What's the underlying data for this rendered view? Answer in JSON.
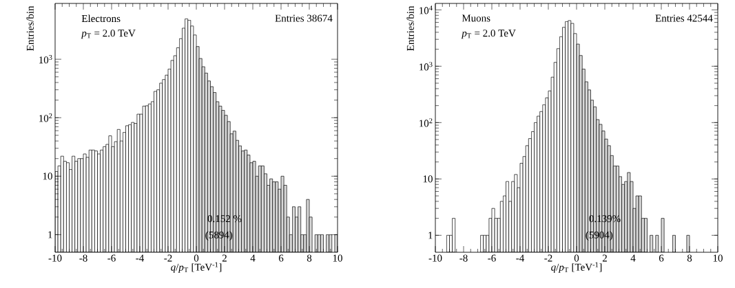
{
  "chart_data": [
    {
      "type": "histogram",
      "xlabel": "*q*/*p*$_{T}$ [TeV$^{-1}$]",
      "ylabel": "Entries/bin",
      "annotations": [
        "Electrons",
        "*p*$_{T}$ = 2.0 TeV",
        "Entries 38674",
        "0.152 %",
        "(5894)"
      ],
      "bins": [
        -10,
        -9.8,
        -9.6,
        -9.4,
        -9.2,
        -9,
        -8.8,
        -8.6,
        -8.4,
        -8.2,
        -8,
        -7.8,
        -7.6,
        -7.4,
        -7.2,
        -7,
        -6.8,
        -6.6,
        -6.4,
        -6.2,
        -6,
        -5.8,
        -5.6,
        -5.4,
        -5.2,
        -5,
        -4.8,
        -4.6,
        -4.4,
        -4.2,
        -4,
        -3.8,
        -3.6,
        -3.4,
        -3.2,
        -3,
        -2.8,
        -2.6,
        -2.4,
        -2.2,
        -2,
        -1.8,
        -1.6,
        -1.4,
        -1.2,
        -1,
        -0.8,
        -0.6,
        -0.4,
        -0.2,
        0,
        0.2,
        0.4,
        0.6,
        0.8,
        1,
        1.2,
        1.4,
        1.6,
        1.8,
        2,
        2.2,
        2.4,
        2.6,
        2.8,
        3,
        3.2,
        3.4,
        3.6,
        3.8,
        4,
        4.2,
        4.4,
        4.6,
        4.8,
        5,
        5.2,
        5.4,
        5.6,
        5.8,
        6,
        6.2,
        6.4,
        6.6,
        6.8,
        7,
        7.2,
        7.4,
        7.6,
        7.8,
        8,
        8.2,
        8.4,
        8.6,
        8.8,
        9,
        9.2,
        9.4,
        9.6,
        9.8,
        10
      ],
      "values": [
        12,
        15,
        22,
        18,
        17,
        13,
        22,
        18,
        20,
        20,
        24,
        21,
        28,
        28,
        27,
        24,
        28,
        32,
        35,
        49,
        32,
        39,
        63,
        40,
        56,
        73,
        76,
        83,
        80,
        115,
        115,
        158,
        160,
        172,
        188,
        282,
        300,
        390,
        450,
        535,
        680,
        955,
        1150,
        1570,
        2250,
        3400,
        4900,
        4650,
        3700,
        2600,
        1650,
        1030,
        745,
        580,
        425,
        340,
        270,
        188,
        158,
        134,
        110,
        86,
        53,
        59,
        41,
        33,
        27,
        28,
        23,
        17,
        18,
        10,
        15,
        15,
        11,
        7,
        9,
        8,
        8,
        6,
        10,
        7,
        2,
        1,
        3,
        2,
        3,
        1,
        1,
        4,
        2,
        null,
        1,
        1,
        1,
        null,
        1,
        1,
        null,
        1
      ],
      "colors": [
        "#ffffff",
        "#ffffff",
        "#ffffff",
        "#ffffff",
        "#ffffff",
        "#ffffff",
        "#ffffff",
        "#ffffff",
        "#ffffff",
        "#ffffff",
        "#ffffff",
        "#ffffff",
        "#ffffff",
        "#ffffff",
        "#ffffff",
        "#ffffff",
        "#ffffff",
        "#ffffff",
        "#ffffff",
        "#ffffff",
        "#ffffff",
        "#ffffff",
        "#ffffff",
        "#ffffff",
        "#ffffff",
        "#ffffff",
        "#ffffff",
        "#ffffff",
        "#ffffff",
        "#ffffff",
        "#ffffff",
        "#ffffff",
        "#ffffff",
        "#ffffff",
        "#ffffff",
        "#ffffff",
        "#ffffff",
        "#ffffff",
        "#ffffff",
        "#ffffff",
        "#ffffff",
        "#ffffff",
        "#ffffff",
        "#ffffff",
        "#ffffff",
        "#ffffff",
        "#ffffff",
        "#ffffff",
        "#ffffff",
        "#ffffff",
        "#d9d9d9",
        "#d9d9d9",
        "#d9d9d9",
        "#d9d9d9",
        "#d9d9d9",
        "#d9d9d9",
        "#d9d9d9",
        "#d9d9d9",
        "#d9d9d9",
        "#d9d9d9",
        "#d9d9d9",
        "#d9d9d9",
        "#d9d9d9",
        "#d9d9d9",
        "#d9d9d9",
        "#d9d9d9",
        "#d9d9d9",
        "#d9d9d9",
        "#d9d9d9",
        "#d9d9d9",
        "#d9d9d9",
        "#d9d9d9",
        "#d9d9d9",
        "#d9d9d9",
        "#d9d9d9",
        "#d9d9d9",
        "#d9d9d9",
        "#d9d9d9",
        "#d9d9d9",
        "#d9d9d9",
        "#d9d9d9",
        "#d9d9d9",
        "#d9d9d9",
        "#d9d9d9",
        "#d9d9d9",
        "#d9d9d9",
        "#d9d9d9",
        "#d9d9d9",
        "#d9d9d9",
        "#d9d9d9",
        "#d9d9d9",
        "#d9d9d9",
        "#d9d9d9",
        "#d9d9d9",
        "#d9d9d9",
        "#d9d9d9",
        "#d9d9d9",
        "#d9d9d9",
        "#d9d9d9",
        "#d9d9d9"
      ],
      "xlim": [
        -10,
        10
      ],
      "ylim": [
        0.5,
        9000
      ],
      "xticks": [
        -10,
        -8,
        -6,
        -4,
        -2,
        0,
        2,
        4,
        6,
        8,
        10
      ],
      "yticks": [
        1,
        10,
        {
          "value": 100,
          "label": "10$^{2}$"
        },
        {
          "value": 1000,
          "label": "10$^{3}$"
        }
      ],
      "log": "y"
    },
    {
      "type": "histogram",
      "xlabel": "*q*/*p*$_{T}$ [TeV$^{-1}$]",
      "ylabel": "Entries/bin",
      "annotations": [
        "Muons",
        "*p*$_{T}$ = 2.0 TeV",
        "Entries 42544",
        "0.139%",
        "(5904)"
      ],
      "bins": [
        -10,
        -9.8,
        -9.6,
        -9.4,
        -9.2,
        -9,
        -8.8,
        -8.6,
        -8.4,
        -8.2,
        -8,
        -7.8,
        -7.6,
        -7.4,
        -7.2,
        -7,
        -6.8,
        -6.6,
        -6.4,
        -6.2,
        -6,
        -5.8,
        -5.6,
        -5.4,
        -5.2,
        -5,
        -4.8,
        -4.6,
        -4.4,
        -4.2,
        -4,
        -3.8,
        -3.6,
        -3.4,
        -3.2,
        -3,
        -2.8,
        -2.6,
        -2.4,
        -2.2,
        -2,
        -1.8,
        -1.6,
        -1.4,
        -1.2,
        -1,
        -0.8,
        -0.6,
        -0.4,
        -0.2,
        0,
        0.2,
        0.4,
        0.6,
        0.8,
        1,
        1.2,
        1.4,
        1.6,
        1.8,
        2,
        2.2,
        2.4,
        2.6,
        2.8,
        3,
        3.2,
        3.4,
        3.6,
        3.8,
        4,
        4.2,
        4.4,
        4.6,
        4.8,
        5,
        5.2,
        5.4,
        5.6,
        5.8,
        6,
        6.2,
        6.4,
        6.6,
        6.8,
        7,
        7.2,
        7.4,
        7.6,
        7.8,
        8,
        8.2,
        8.4,
        8.6,
        8.8,
        9,
        9.2,
        9.4,
        9.6,
        9.8,
        10
      ],
      "values": [
        null,
        null,
        null,
        null,
        1,
        1,
        2,
        null,
        null,
        null,
        null,
        null,
        null,
        null,
        null,
        null,
        1,
        1,
        1,
        2,
        3,
        2,
        2,
        4,
        5,
        9,
        4,
        9,
        12,
        7,
        19,
        25,
        39,
        52,
        69,
        100,
        130,
        157,
        207,
        275,
        365,
        640,
        1170,
        2050,
        3340,
        4900,
        6200,
        6450,
        5750,
        3800,
        2470,
        1550,
        890,
        530,
        380,
        250,
        190,
        113,
        93,
        71,
        51,
        39,
        26,
        17,
        17,
        11,
        8,
        9,
        13,
        9,
        3,
        5,
        5,
        2,
        2,
        null,
        1,
        null,
        1,
        null,
        2,
        null,
        null,
        null,
        1,
        null,
        null,
        null,
        null,
        1,
        null,
        null,
        null,
        null,
        null,
        null,
        null,
        null,
        null,
        null
      ],
      "colors": [
        "#ffffff",
        "#ffffff",
        "#ffffff",
        "#ffffff",
        "#ffffff",
        "#ffffff",
        "#ffffff",
        "#ffffff",
        "#ffffff",
        "#ffffff",
        "#ffffff",
        "#ffffff",
        "#ffffff",
        "#ffffff",
        "#ffffff",
        "#ffffff",
        "#ffffff",
        "#ffffff",
        "#ffffff",
        "#ffffff",
        "#ffffff",
        "#ffffff",
        "#ffffff",
        "#ffffff",
        "#ffffff",
        "#ffffff",
        "#ffffff",
        "#ffffff",
        "#ffffff",
        "#ffffff",
        "#ffffff",
        "#ffffff",
        "#ffffff",
        "#ffffff",
        "#ffffff",
        "#ffffff",
        "#ffffff",
        "#ffffff",
        "#ffffff",
        "#ffffff",
        "#ffffff",
        "#ffffff",
        "#ffffff",
        "#ffffff",
        "#ffffff",
        "#ffffff",
        "#ffffff",
        "#ffffff",
        "#ffffff",
        "#ffffff",
        "#d9d9d9",
        "#d9d9d9",
        "#d9d9d9",
        "#d9d9d9",
        "#d9d9d9",
        "#d9d9d9",
        "#d9d9d9",
        "#d9d9d9",
        "#d9d9d9",
        "#d9d9d9",
        "#d9d9d9",
        "#d9d9d9",
        "#d9d9d9",
        "#d9d9d9",
        "#d9d9d9",
        "#d9d9d9",
        "#d9d9d9",
        "#d9d9d9",
        "#d9d9d9",
        "#d9d9d9",
        "#d9d9d9",
        "#d9d9d9",
        "#d9d9d9",
        "#d9d9d9",
        "#d9d9d9",
        "#d9d9d9",
        "#d9d9d9",
        "#d9d9d9",
        "#d9d9d9",
        "#d9d9d9",
        "#d9d9d9",
        "#d9d9d9",
        "#d9d9d9",
        "#d9d9d9",
        "#d9d9d9",
        "#d9d9d9",
        "#d9d9d9",
        "#d9d9d9",
        "#d9d9d9",
        "#d9d9d9",
        "#d9d9d9",
        "#d9d9d9",
        "#d9d9d9",
        "#d9d9d9",
        "#d9d9d9",
        "#d9d9d9",
        "#d9d9d9",
        "#d9d9d9",
        "#d9d9d9",
        "#d9d9d9"
      ],
      "xlim": [
        -10,
        10
      ],
      "ylim": [
        0.5,
        13000
      ],
      "xticks": [
        -10,
        -8,
        -6,
        -4,
        -2,
        0,
        2,
        4,
        6,
        8,
        10
      ],
      "yticks": [
        1,
        10,
        {
          "value": 100,
          "label": "10$^{2}$"
        },
        {
          "value": 1000,
          "label": "10$^{3}$"
        },
        {
          "value": 10000,
          "label": "10$^{4}$"
        }
      ],
      "log": "y"
    }
  ]
}
